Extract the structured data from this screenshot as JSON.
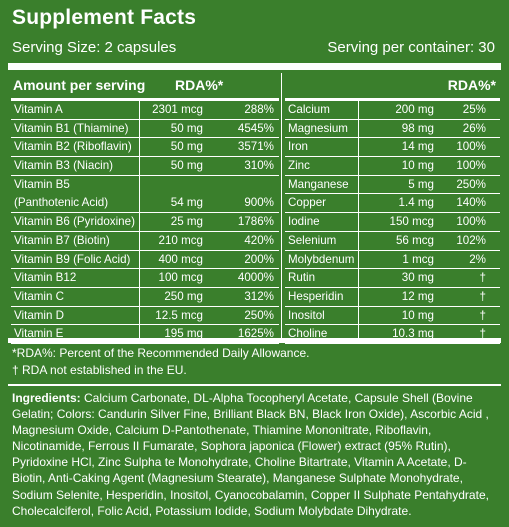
{
  "title": "Supplement Facts",
  "serving_size": "Serving Size: 2 capsules",
  "serving_container": "Serving per container: 30",
  "headers": {
    "amount": "Amount per serving",
    "rda_left": "RDA%*",
    "rda_right": "RDA%*"
  },
  "left_rows": [
    {
      "name": "Vitamin A",
      "amount": "2301 mcg",
      "rda": "288%"
    },
    {
      "name": "Vitamin B1 (Thiamine)",
      "amount": "50 mg",
      "rda": "4545%"
    },
    {
      "name": "Vitamin B2 (Riboflavin)",
      "amount": "50 mg",
      "rda": "3571%"
    },
    {
      "name": "Vitamin B3 (Niacin)",
      "amount": "50 mg",
      "rda": "310%"
    },
    {
      "name": "Vitamin B5",
      "name2": "(Panthotenic Acid)",
      "amount": "54 mg",
      "rda": "900%"
    },
    {
      "name": "Vitamin B6 (Pyridoxine)",
      "amount": "25 mg",
      "rda": "1786%"
    },
    {
      "name": "Vitamin B7 (Biotin)",
      "amount": "210 mcg",
      "rda": "420%"
    },
    {
      "name": "Vitamin B9 (Folic Acid)",
      "amount": "400 mcg",
      "rda": "200%"
    },
    {
      "name": "Vitamin B12",
      "amount": "100 mcg",
      "rda": "4000%"
    },
    {
      "name": "Vitamin C",
      "amount": "250 mg",
      "rda": "312%"
    },
    {
      "name": "Vitamin D",
      "amount": "12.5 mcg",
      "rda": "250%"
    },
    {
      "name": "Vitamin E",
      "amount": "195 mg",
      "rda": "1625%"
    }
  ],
  "right_rows": [
    {
      "name": "Calcium",
      "amount": "200 mg",
      "rda": "25%"
    },
    {
      "name": "Magnesium",
      "amount": "98 mg",
      "rda": "26%"
    },
    {
      "name": "Iron",
      "amount": "14 mg",
      "rda": "100%"
    },
    {
      "name": "Zinc",
      "amount": "10 mg",
      "rda": "100%"
    },
    {
      "name": "Manganese",
      "amount": "5 mg",
      "rda": "250%"
    },
    {
      "name": "Copper",
      "amount": "1.4 mg",
      "rda": "140%"
    },
    {
      "name": "Iodine",
      "amount": "150 mcg",
      "rda": "100%"
    },
    {
      "name": "Selenium",
      "amount": "56 mcg",
      "rda": "102%"
    },
    {
      "name": "Molybdenum",
      "amount": "1 mcg",
      "rda": "2%"
    },
    {
      "name": "Rutin",
      "amount": "30 mg",
      "rda": "†"
    },
    {
      "name": "Hesperidin",
      "amount": "12 mg",
      "rda": "†"
    },
    {
      "name": "Inositol",
      "amount": "10 mg",
      "rda": "†"
    },
    {
      "name": "Choline",
      "amount": "10.3 mg",
      "rda": "†"
    }
  ],
  "notes": [
    "*RDA%: Percent of the Recommended Daily Allowance.",
    "† RDA not established in the EU."
  ],
  "ingredients_label": "Ingredients:",
  "ingredients_text": "Calcium Carbonate, DL-Alpha Tocopheryl Acetate, Capsule Shell (Bovine Gelatin; Colors: Candurin Silver Fine, Brilliant Black BN, Black Iron Oxide), Ascorbic Acid , Magnesium Oxide, Calcium D-Pantothenate, Thiamine Mononitrate, Riboflavin, Nicotinamide, Ferrous II Fumarate, Sophora japonica (Flower) extract (95% Rutin), Pyridoxine HCl, Zinc Sulpha te Monohydrate, Choline Bitartrate, Vitamin A Acetate, D-Biotin, Anti-Caking Agent (Magnesium Stearate), Manganese Sulphate Monohydrate, Sodium Selenite, Hesperidin, Inositol, Cyanocobalamin, Copper II Sulphate Pentahydrate, Cholecalciferol, Folic Acid, Potassium Iodide, Sodium Molybdate Dihydrate.",
  "colors": {
    "background": "#3a7f2c",
    "text": "#ffffff"
  }
}
